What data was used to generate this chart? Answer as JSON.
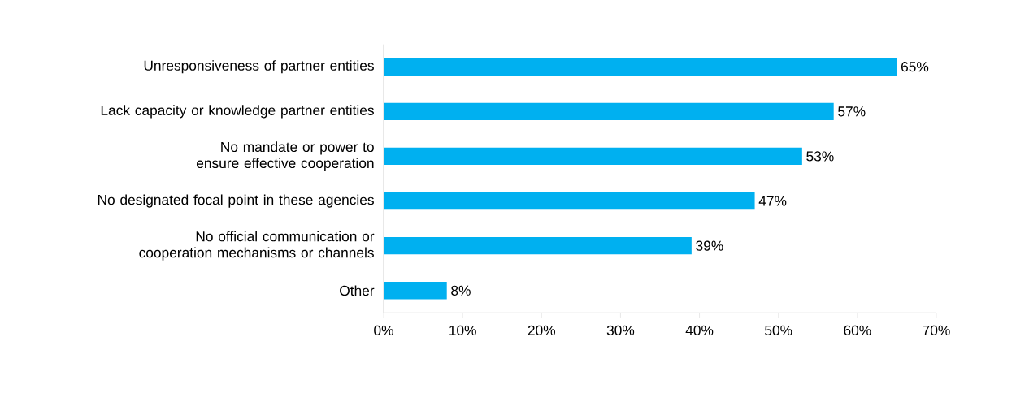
{
  "chart_data": {
    "type": "bar",
    "orientation": "horizontal",
    "categories": [
      "Unresponsiveness of partner entities",
      "Lack capacity or knowledge partner entities",
      "No mandate or power to ensure effective cooperation",
      "No designated focal point in these agencies",
      "No official communication or cooperation mechanisms or channels",
      "Other"
    ],
    "values": [
      65,
      57,
      53,
      47,
      39,
      8
    ],
    "value_labels": [
      "65%",
      "57%",
      "53%",
      "47%",
      "39%",
      "8%"
    ],
    "color": "#00b0f0",
    "xlim": [
      0,
      70
    ],
    "xticks": [
      {
        "value": 0,
        "label": "0%"
      },
      {
        "value": 10,
        "label": "10%"
      },
      {
        "value": 20,
        "label": "20%"
      },
      {
        "value": 30,
        "label": "30%"
      },
      {
        "value": 40,
        "label": "40%"
      },
      {
        "value": 50,
        "label": "50%"
      },
      {
        "value": 60,
        "label": "60%"
      },
      {
        "value": 70,
        "label": "70%"
      }
    ],
    "grid": false
  }
}
